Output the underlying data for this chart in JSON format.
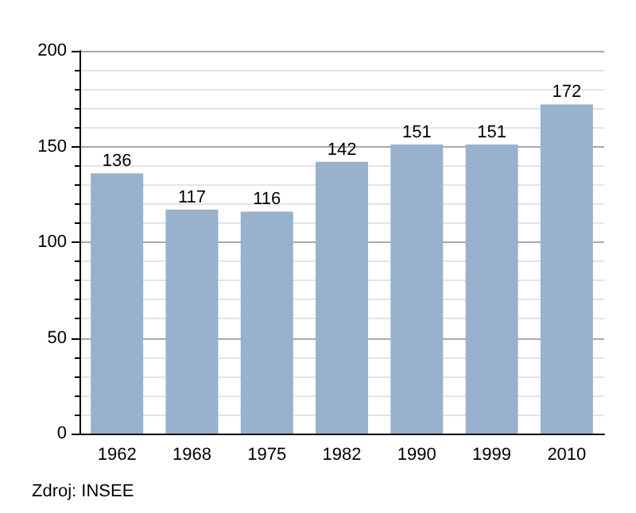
{
  "chart_data": {
    "type": "bar",
    "categories": [
      "1962",
      "1968",
      "1975",
      "1982",
      "1990",
      "1999",
      "2010"
    ],
    "values": [
      136,
      117,
      116,
      142,
      151,
      151,
      172
    ],
    "color": "#98b1cc",
    "ylim": [
      0,
      200
    ],
    "yticks": [
      0,
      50,
      100,
      150,
      200
    ],
    "grid": "y",
    "data_labels": true,
    "annotations": [
      "Zdroj: INSEE"
    ]
  }
}
